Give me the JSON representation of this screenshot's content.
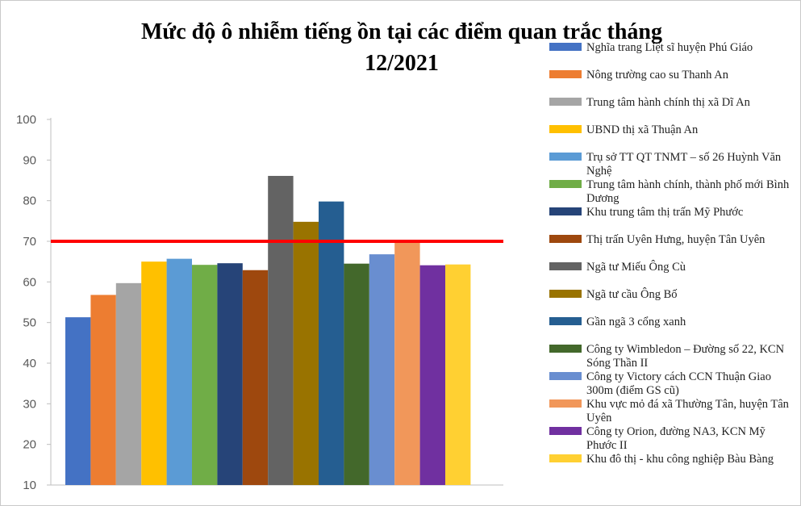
{
  "chart_data": {
    "type": "bar",
    "title_lines": [
      "Mức độ ô nhiễm tiếng ồn tại các điểm quan trắc tháng",
      "12/2021"
    ],
    "xlabel": "",
    "ylabel": "",
    "ylim": [
      10,
      100
    ],
    "yticks": [
      10,
      20,
      30,
      40,
      50,
      60,
      70,
      80,
      90,
      100
    ],
    "grid": false,
    "legend_position": "right",
    "threshold": {
      "value": 70,
      "color": "#ff0000"
    },
    "series": [
      {
        "name": "Nghĩa trang Liệt sĩ huyện Phú Giáo",
        "value": 51.3,
        "color": "#4472c4"
      },
      {
        "name": "Nông trường cao su Thanh  An",
        "value": 56.8,
        "color": "#ed7d31"
      },
      {
        "name": "Trung tâm hành chính thị xã Dĩ An",
        "value": 59.7,
        "color": "#a5a5a5"
      },
      {
        "name": "UBND thị xã Thuận  An",
        "value": 65.0,
        "color": "#ffc000"
      },
      {
        "name": "Trụ sở TT  QT  TNMT  – số 26 Huỳnh Văn Nghệ",
        "value": 65.7,
        "color": "#5b9bd5"
      },
      {
        "name": "Trung tâm hành chính, thành phố mới Bình Dương",
        "value": 64.2,
        "color": "#70ad47"
      },
      {
        "name": "Khu trung tâm thị trấn Mỹ Phước",
        "value": 64.6,
        "color": "#264478"
      },
      {
        "name": "Thị trấn Uyên Hưng, huyện Tân Uyên",
        "value": 62.9,
        "color": "#9e480e"
      },
      {
        "name": "Ngã tư Miếu Ông Cù",
        "value": 86.1,
        "color": "#636363"
      },
      {
        "name": "Ngã tư cầu Ông Bố",
        "value": 74.8,
        "color": "#997300"
      },
      {
        "name": "Gần ngã 3 cổng xanh",
        "value": 79.8,
        "color": "#255e91"
      },
      {
        "name": "Công ty Wimbledon – Đường số 22, KCN Sóng Thần II",
        "value": 64.5,
        "color": "#43682b"
      },
      {
        "name": "Công ty Victory cách CCN Thuận Giao 300m (điểm GS cũ)",
        "value": 66.8,
        "color": "#698ed0"
      },
      {
        "name": "Khu vực mỏ đá xã Thường Tân, huyện Tân Uyên",
        "value": 69.8,
        "color": "#f1975a"
      },
      {
        "name": "Công ty Orion, đường NA3, KCN Mỹ Phước II",
        "value": 64.1,
        "color": "#7030a0"
      },
      {
        "name": "Khu đô thị - khu công nghiệp Bàu Bàng",
        "value": 64.3,
        "color": "#ffd032"
      }
    ]
  }
}
